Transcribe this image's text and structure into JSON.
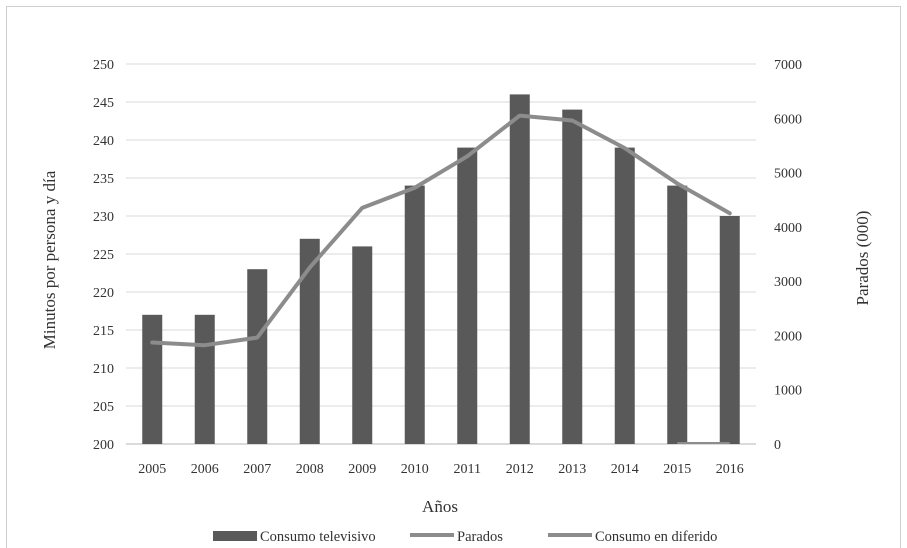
{
  "chart_data": {
    "type": "bar+line",
    "categories": [
      "2005",
      "2006",
      "2007",
      "2008",
      "2009",
      "2010",
      "2011",
      "2012",
      "2013",
      "2014",
      "2015",
      "2016"
    ],
    "series": [
      {
        "name": "Consumo televisivo",
        "type": "bar",
        "axis": "left",
        "color": "#595959",
        "values": [
          217,
          217,
          223,
          227,
          226,
          234,
          239,
          246,
          244,
          239,
          234,
          230
        ]
      },
      {
        "name": "Parados",
        "type": "line",
        "axis": "right",
        "color": "#8c8c8c",
        "values": [
          1870,
          1820,
          1960,
          3250,
          4350,
          4720,
          5300,
          6050,
          5960,
          5450,
          4800,
          4250
        ]
      },
      {
        "name": "Consumo en diferido",
        "type": "line",
        "axis": "right",
        "color": "#8c8c8c",
        "x": [
          "2015",
          "2016"
        ],
        "values": [
          0,
          0
        ]
      }
    ],
    "xlabel": "Años",
    "ylabel": "Minutos por persona y día",
    "y2label": "Parados (000)",
    "ylim": [
      200,
      250
    ],
    "y2lim": [
      0,
      7000
    ],
    "yticks": [
      "200",
      "205",
      "210",
      "215",
      "220",
      "225",
      "230",
      "235",
      "240",
      "245",
      "250"
    ],
    "y2ticks": [
      "0",
      "1000",
      "2000",
      "3000",
      "4000",
      "5000",
      "6000",
      "7000"
    ],
    "grid": true,
    "legend_position": "bottom"
  }
}
